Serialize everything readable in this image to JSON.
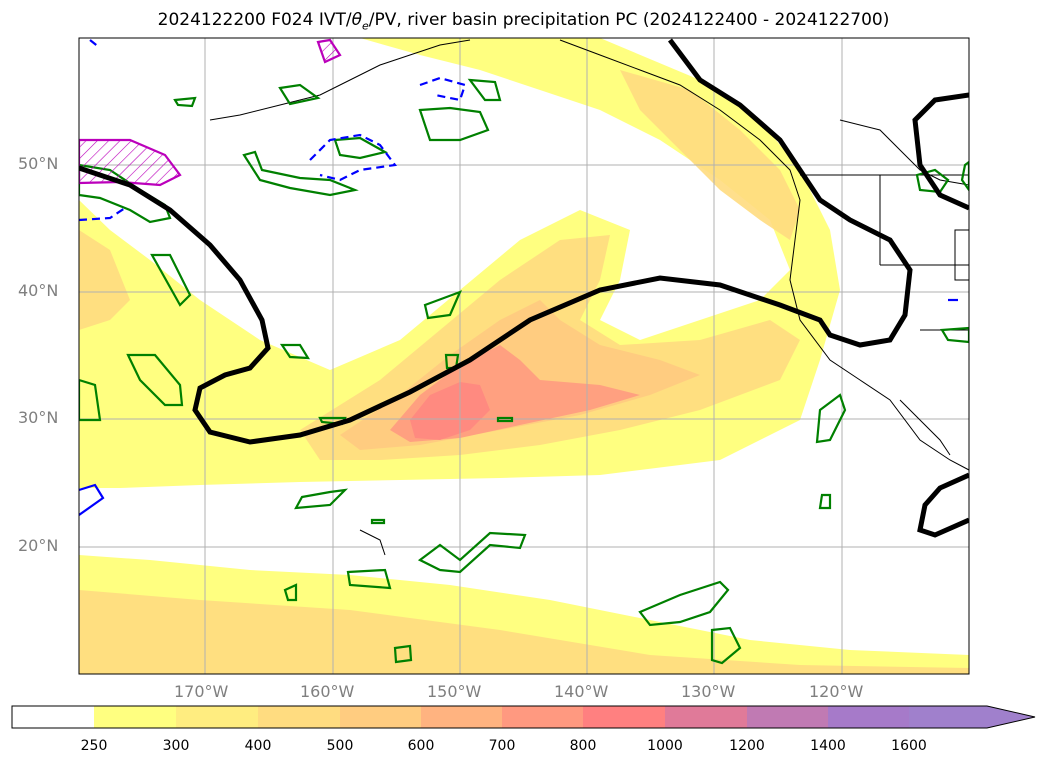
{
  "title": "2024122200 F024 IVT/θe/PV, river basin precipitation PC (2024122400 - 2024122700)",
  "title_parts": {
    "prefix": "2024122200 F024 IVT/",
    "theta": "θ",
    "theta_sub": "e",
    "suffix": "/PV, river basin precipitation PC (2024122400 - 2024122700)"
  },
  "map": {
    "region": "North Pacific",
    "lat_labels": [
      "50°N",
      "40°N",
      "30°N",
      "20°N"
    ],
    "lon_labels": [
      "170°W",
      "160°W",
      "150°W",
      "140°W",
      "130°W",
      "120°W"
    ],
    "gridlines": true
  },
  "colorbar": {
    "levels": [
      "250",
      "300",
      "400",
      "500",
      "600",
      "700",
      "800",
      "1000",
      "1200",
      "1400",
      "1600"
    ],
    "colors": [
      "#ffffff",
      "#ffff80",
      "#ffed80",
      "#ffdc80",
      "#ffcc80",
      "#ffb380",
      "#ff9980",
      "#ff8080",
      "#e07a99",
      "#c07ab3",
      "#a67ac9",
      "#a080cc"
    ],
    "extend": "max"
  },
  "legend_colors": {
    "ivt_low": "#ffff80",
    "ivt_mid": "#ffcc80",
    "ivt_high": "#ff8a80",
    "theta_contour": "#000000",
    "pv_positive": "#008000",
    "pv_negative": "#0000ff",
    "hatched": "#bb00bb"
  }
}
